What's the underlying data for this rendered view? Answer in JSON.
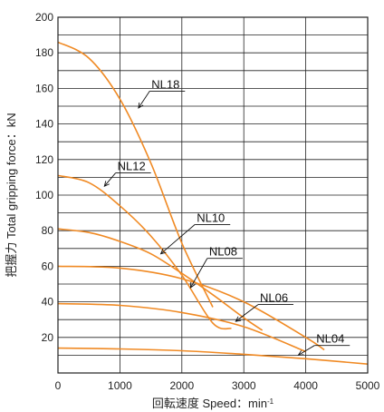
{
  "chart_data": {
    "type": "line",
    "title": "",
    "xlabel_main": "回転速度 Speed：min",
    "xlabel_sup": "-1",
    "ylabel": "把握力 Total gripping force：kN",
    "xlim": [
      0,
      5000
    ],
    "ylim": [
      0,
      200
    ],
    "x_ticks": [
      0,
      1000,
      2000,
      3000,
      4000,
      5000
    ],
    "y_ticks": [
      20,
      40,
      60,
      80,
      100,
      120,
      140,
      160,
      180,
      200
    ],
    "grid": true,
    "line_color": "#f08a24",
    "series": [
      {
        "name": "NL18",
        "x": [
          0,
          500,
          1000,
          1500,
          2000,
          2500
        ],
        "y": [
          186,
          177,
          154,
          118,
          73,
          37
        ],
        "label_at": [
          1510,
          160
        ],
        "pointer": [
          1300,
          149
        ]
      },
      {
        "name": "NL12",
        "x": [
          0,
          500,
          1000,
          1500,
          2000,
          2500,
          2800
        ],
        "y": [
          111,
          107,
          94,
          77,
          55,
          28,
          25
        ],
        "label_at": [
          960,
          114
        ],
        "pointer": [
          750,
          105
        ]
      },
      {
        "name": "NL10",
        "x": [
          0,
          500,
          1000,
          1500,
          2000,
          2500,
          3000,
          3300
        ],
        "y": [
          81,
          79,
          74,
          67,
          56,
          44,
          31,
          24
        ],
        "label_at": [
          2240,
          85
        ],
        "pointer": [
          1660,
          67
        ]
      },
      {
        "name": "NL08",
        "x": [
          0,
          1000,
          2000,
          3000,
          4000,
          4300
        ],
        "y": [
          60,
          59,
          53,
          40,
          20,
          13
        ],
        "label_at": [
          2440,
          66
        ],
        "pointer": [
          2140,
          48
        ]
      },
      {
        "name": "NL06",
        "x": [
          0,
          1000,
          2000,
          3000,
          4000
        ],
        "y": [
          39,
          38,
          34,
          26,
          12
        ],
        "label_at": [
          3260,
          40
        ],
        "pointer": [
          2870,
          29
        ]
      },
      {
        "name": "NL04",
        "x": [
          0,
          1000,
          2000,
          3000,
          4000,
          5000
        ],
        "y": [
          14,
          13.5,
          12.5,
          10.5,
          8,
          5
        ],
        "label_at": [
          4170,
          17
        ],
        "pointer": [
          3880,
          10
        ]
      }
    ]
  }
}
